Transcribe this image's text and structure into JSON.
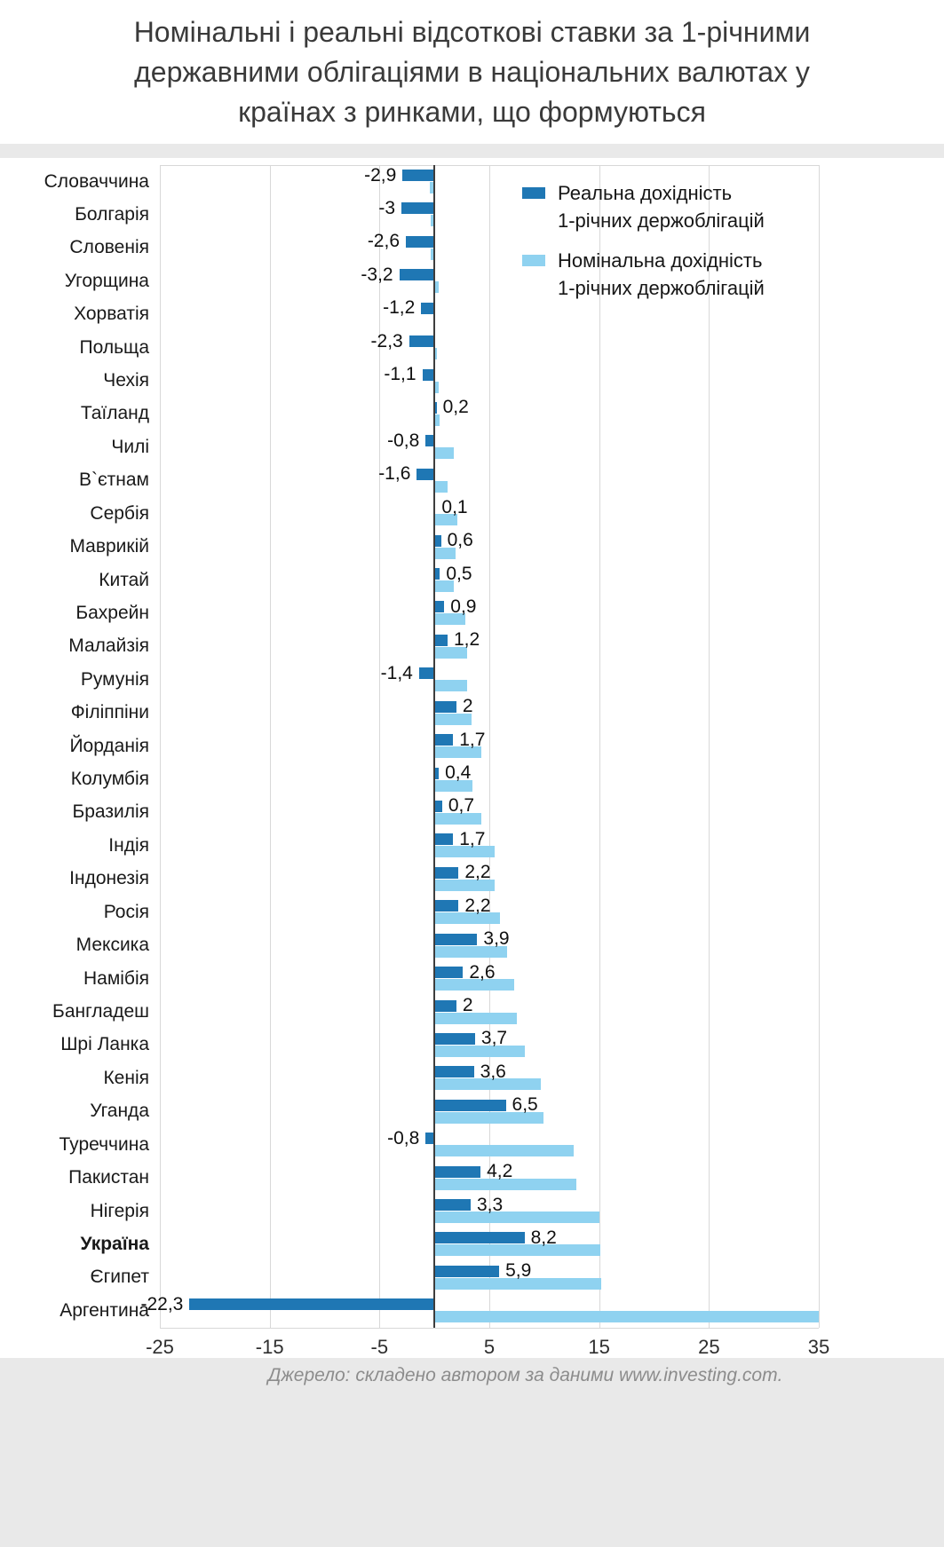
{
  "title_lines": [
    "Номінальні і реальні відсоткові ставки за 1-річними",
    "державними облігаціями в національних валютах у",
    "країнах з ринками, що формуються"
  ],
  "source": "Джерело: складено автором за даними www.investing.com.",
  "legend": {
    "real_lines": [
      "Реальна дохідність",
      "1-річних держоблігацій"
    ],
    "nominal_lines": [
      "Номінальна дохідність",
      "1-річних держоблігацій"
    ]
  },
  "colors": {
    "real": "#1f77b4",
    "nominal": "#8fd2f0",
    "zero_axis": "#3d3d3d",
    "grid": "#d8d8d8"
  },
  "chart_data": {
    "type": "bar",
    "orientation": "horizontal",
    "title": "Номінальні і реальні відсоткові ставки за 1-річними державними облігаціями в національних валютах у країнах з ринками, що формуються",
    "xlabel": "",
    "xlim": [
      -25,
      35
    ],
    "xticks": [
      -25,
      -15,
      -5,
      5,
      15,
      25,
      35
    ],
    "grid": "vertical",
    "legend_position": "top-right",
    "series": [
      {
        "name": "Реальна дохідність 1-річних держоблігацій",
        "color": "#1f77b4",
        "value_key": "real"
      },
      {
        "name": "Номінальна дохідність 1-річних держоблігацій",
        "color": "#8fd2f0",
        "value_key": "nominal"
      }
    ],
    "nominal_values_estimated": true,
    "countries": [
      {
        "name": "Словаччина",
        "real": -2.9,
        "real_label": "-2,9",
        "nominal": -0.4
      },
      {
        "name": "Болгарія",
        "real": -3,
        "real_label": "-3",
        "nominal": -0.3
      },
      {
        "name": "Словенія",
        "real": -2.6,
        "real_label": "-2,6",
        "nominal": -0.3
      },
      {
        "name": "Угорщина",
        "real": -3.2,
        "real_label": "-3,2",
        "nominal": 0.4
      },
      {
        "name": "Хорватія",
        "real": -1.2,
        "real_label": "-1,2",
        "nominal": -0.1
      },
      {
        "name": "Польща",
        "real": -2.3,
        "real_label": "-2,3",
        "nominal": 0.2
      },
      {
        "name": "Чехія",
        "real": -1.1,
        "real_label": "-1,1",
        "nominal": 0.4
      },
      {
        "name": "Таїланд",
        "real": 0.2,
        "real_label": "0,2",
        "nominal": 0.5
      },
      {
        "name": "Чилі",
        "real": -0.8,
        "real_label": "-0,8",
        "nominal": 1.8
      },
      {
        "name": "В`єтнам",
        "real": -1.6,
        "real_label": "-1,6",
        "nominal": 1.2
      },
      {
        "name": "Сербія",
        "real": 0.1,
        "real_label": "0,1",
        "nominal": 2.1
      },
      {
        "name": "Маврикій",
        "real": 0.6,
        "real_label": "0,6",
        "nominal": 1.9
      },
      {
        "name": "Китай",
        "real": 0.5,
        "real_label": "0,5",
        "nominal": 1.8
      },
      {
        "name": "Бахрейн",
        "real": 0.9,
        "real_label": "0,9",
        "nominal": 2.8
      },
      {
        "name": "Малайзія",
        "real": 1.2,
        "real_label": "1,2",
        "nominal": 3.0
      },
      {
        "name": "Румунія",
        "real": -1.4,
        "real_label": "-1,4",
        "nominal": 3.0
      },
      {
        "name": "Філіппіни",
        "real": 2,
        "real_label": "2",
        "nominal": 3.4
      },
      {
        "name": "Йорданія",
        "real": 1.7,
        "real_label": "1,7",
        "nominal": 4.3
      },
      {
        "name": "Колумбія",
        "real": 0.4,
        "real_label": "0,4",
        "nominal": 3.5
      },
      {
        "name": "Бразилія",
        "real": 0.7,
        "real_label": "0,7",
        "nominal": 4.3
      },
      {
        "name": "Індія",
        "real": 1.7,
        "real_label": "1,7",
        "nominal": 5.5
      },
      {
        "name": "Індонезія",
        "real": 2.2,
        "real_label": "2,2",
        "nominal": 5.5
      },
      {
        "name": "Росія",
        "real": 2.2,
        "real_label": "2,2",
        "nominal": 6.0
      },
      {
        "name": "Мексика",
        "real": 3.9,
        "real_label": "3,9",
        "nominal": 6.6
      },
      {
        "name": "Намібія",
        "real": 2.6,
        "real_label": "2,6",
        "nominal": 7.3
      },
      {
        "name": "Бангладеш",
        "real": 2,
        "real_label": "2",
        "nominal": 7.5
      },
      {
        "name": "Шрі Ланка",
        "real": 3.7,
        "real_label": "3,7",
        "nominal": 8.2
      },
      {
        "name": "Кенія",
        "real": 3.6,
        "real_label": "3,6",
        "nominal": 9.7
      },
      {
        "name": "Уганда",
        "real": 6.5,
        "real_label": "6,5",
        "nominal": 9.9
      },
      {
        "name": "Туреччина",
        "real": -0.8,
        "real_label": "-0,8",
        "nominal": 12.7
      },
      {
        "name": "Пакистан",
        "real": 4.2,
        "real_label": "4,2",
        "nominal": 12.9
      },
      {
        "name": "Нігерія",
        "real": 3.3,
        "real_label": "3,3",
        "nominal": 15.0
      },
      {
        "name": "Україна",
        "real": 8.2,
        "real_label": "8,2",
        "nominal": 15.1,
        "bold": true
      },
      {
        "name": "Єгипет",
        "real": 5.9,
        "real_label": "5,9",
        "nominal": 15.2
      },
      {
        "name": "Аргентина",
        "real": -22.3,
        "real_label": "-22,3",
        "nominal": 35.0
      }
    ]
  }
}
